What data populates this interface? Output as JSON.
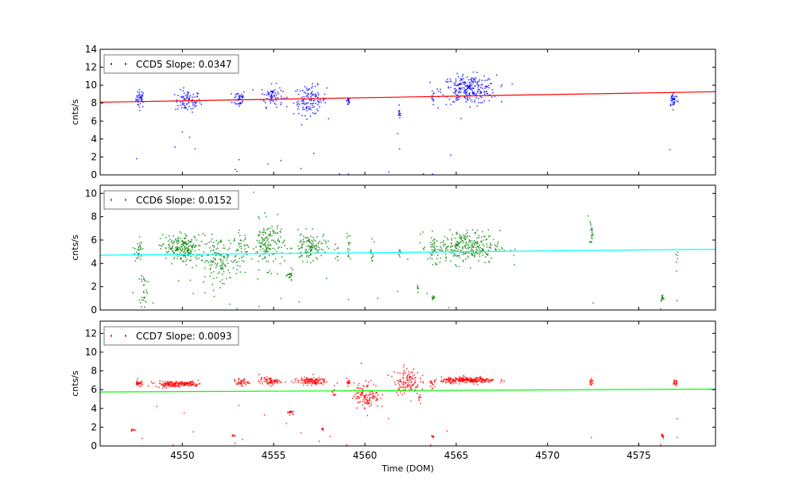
{
  "chart_data": [
    {
      "type": "scatter",
      "legend": "CCD5 Slope: 0.0347",
      "ylabel": "cnts/s",
      "xlim": [
        4545.5,
        4579.2
      ],
      "ylim": [
        0,
        14
      ],
      "yticks": [
        0,
        2,
        4,
        6,
        8,
        10,
        12,
        14
      ],
      "point_color": "#0000ff",
      "fit_color": "#ff0000",
      "fit": {
        "slope": 0.0347,
        "y_at_xmin": 8.1,
        "y_at_xmax": 9.27
      },
      "legend_position": "top-left",
      "clusters": [
        [
          4547.7,
          8.5,
          0.12,
          0.5,
          40
        ],
        [
          4550.3,
          8.2,
          0.35,
          0.6,
          80
        ],
        [
          4553.1,
          8.5,
          0.18,
          0.5,
          40
        ],
        [
          4554.9,
          8.8,
          0.3,
          0.6,
          70
        ],
        [
          4557.0,
          8.3,
          0.45,
          0.8,
          120
        ],
        [
          4559.1,
          8.3,
          0.05,
          0.4,
          15
        ],
        [
          4561.9,
          6.8,
          0.05,
          0.3,
          12
        ],
        [
          4563.7,
          8.5,
          0.05,
          0.4,
          10
        ],
        [
          4565.7,
          9.5,
          0.75,
          0.8,
          250
        ],
        [
          4576.9,
          8.4,
          0.12,
          0.4,
          40
        ]
      ],
      "outliers": [
        [
          4547.5,
          1.8
        ],
        [
          4549.6,
          3.1
        ],
        [
          4550.4,
          4.2
        ],
        [
          4550.0,
          4.8
        ],
        [
          4550.7,
          2.9
        ],
        [
          4552.9,
          0.6
        ],
        [
          4553.0,
          0.4
        ],
        [
          4553.1,
          1.7
        ],
        [
          4554.7,
          1.2
        ],
        [
          4555.4,
          1.6
        ],
        [
          4556.5,
          0.7
        ],
        [
          4557.2,
          2.4
        ],
        [
          4558.6,
          0.1
        ],
        [
          4559.1,
          0.1
        ],
        [
          4561.3,
          0.3
        ],
        [
          4561.9,
          2.9
        ],
        [
          4561.8,
          4.6
        ],
        [
          4563.2,
          0.1
        ],
        [
          4563.7,
          0.1
        ],
        [
          4564.7,
          2.2
        ],
        [
          4576.7,
          2.8
        ]
      ]
    },
    {
      "type": "scatter",
      "legend": "CCD6 Slope: 0.0152",
      "ylabel": "cnts/s",
      "xlim": [
        4545.5,
        4579.2
      ],
      "ylim": [
        0,
        10.7
      ],
      "yticks": [
        0,
        2,
        4,
        6,
        8,
        10
      ],
      "point_color": "#008000",
      "fit_color": "#00ffff",
      "fit": {
        "slope": 0.0152,
        "y_at_xmin": 4.7,
        "y_at_xmax": 5.21
      },
      "legend_position": "top-left",
      "clusters": [
        [
          4547.6,
          5.2,
          0.1,
          0.6,
          30
        ],
        [
          4547.9,
          1.8,
          0.1,
          0.8,
          30
        ],
        [
          4549.6,
          5.3,
          0.4,
          0.6,
          120
        ],
        [
          4550.4,
          5.2,
          0.3,
          0.6,
          80
        ],
        [
          4552.0,
          4.3,
          0.55,
          1.0,
          150
        ],
        [
          4553.2,
          5.3,
          0.2,
          0.7,
          40
        ],
        [
          4554.7,
          5.6,
          0.45,
          1.0,
          150
        ],
        [
          4555.9,
          2.9,
          0.08,
          0.25,
          20
        ],
        [
          4557.0,
          5.4,
          0.45,
          0.6,
          120
        ],
        [
          4558.5,
          5.0,
          0.04,
          0.5,
          8
        ],
        [
          4559.1,
          5.5,
          0.05,
          0.6,
          15
        ],
        [
          4560.4,
          5.0,
          0.05,
          0.7,
          12
        ],
        [
          4561.9,
          5.1,
          0.05,
          0.4,
          8
        ],
        [
          4562.9,
          1.8,
          0.04,
          0.2,
          6
        ],
        [
          4563.7,
          5.3,
          0.1,
          0.6,
          20
        ],
        [
          4563.7,
          0.9,
          0.05,
          0.2,
          10
        ],
        [
          4565.5,
          5.4,
          0.95,
          0.7,
          300
        ],
        [
          4572.4,
          6.8,
          0.05,
          0.6,
          20
        ],
        [
          4576.3,
          1.0,
          0.05,
          0.15,
          15
        ],
        [
          4577.1,
          4.5,
          0.05,
          0.7,
          6
        ]
      ],
      "outliers": [
        [
          4547.3,
          1.5
        ],
        [
          4548.4,
          0.6
        ],
        [
          4549.8,
          2.5
        ],
        [
          4550.6,
          1.4
        ],
        [
          4552.6,
          0.5
        ],
        [
          4553.0,
          0.1
        ],
        [
          4553.9,
          10.1
        ],
        [
          4554.2,
          0.3
        ],
        [
          4555.4,
          1.0
        ],
        [
          4556.4,
          0.7
        ],
        [
          4557.9,
          2.7
        ],
        [
          4559.1,
          0.9
        ],
        [
          4560.7,
          1.0
        ],
        [
          4561.8,
          1.6
        ],
        [
          4563.4,
          1.4
        ],
        [
          4564.6,
          0.2
        ],
        [
          4572.5,
          0.6
        ],
        [
          4577.1,
          0.8
        ],
        [
          4576.2,
          0.1
        ]
      ]
    },
    {
      "type": "scatter",
      "legend": "CCD7 Slope: 0.0093",
      "ylabel": "cnts/s",
      "xlabel": "Time (DOM)",
      "xlim": [
        4545.5,
        4579.2
      ],
      "xticks": [
        4550,
        4555,
        4560,
        4565,
        4570,
        4575
      ],
      "ylim": [
        0,
        13.3
      ],
      "yticks": [
        0,
        2,
        4,
        6,
        8,
        10,
        12
      ],
      "point_color": "#ff0000",
      "fit_color": "#00ff00",
      "fit": {
        "slope": 0.0093,
        "y_at_xmin": 5.75,
        "y_at_xmax": 6.06
      },
      "legend_position": "top-left",
      "clusters": [
        [
          4547.3,
          1.7,
          0.08,
          0.05,
          10
        ],
        [
          4547.6,
          6.7,
          0.08,
          0.2,
          30
        ],
        [
          4549.4,
          6.6,
          0.45,
          0.15,
          120
        ],
        [
          4550.4,
          6.6,
          0.3,
          0.15,
          60
        ],
        [
          4552.8,
          1.1,
          0.05,
          0.05,
          8
        ],
        [
          4553.2,
          6.8,
          0.2,
          0.2,
          40
        ],
        [
          4554.8,
          6.9,
          0.3,
          0.2,
          70
        ],
        [
          4555.9,
          3.6,
          0.08,
          0.1,
          20
        ],
        [
          4557.0,
          6.9,
          0.45,
          0.2,
          120
        ],
        [
          4557.7,
          1.8,
          0.04,
          0.1,
          8
        ],
        [
          4558.3,
          5.7,
          0.04,
          0.3,
          10
        ],
        [
          4559.1,
          6.8,
          0.05,
          0.2,
          15
        ],
        [
          4560.1,
          5.4,
          0.35,
          0.7,
          120
        ],
        [
          4562.3,
          6.9,
          0.35,
          0.7,
          120
        ],
        [
          4563.0,
          5.0,
          0.04,
          0.3,
          8
        ],
        [
          4563.7,
          6.7,
          0.08,
          0.3,
          15
        ],
        [
          4563.7,
          1.0,
          0.04,
          0.15,
          8
        ],
        [
          4565.7,
          7.0,
          0.75,
          0.15,
          250
        ],
        [
          4572.4,
          6.8,
          0.05,
          0.2,
          15
        ],
        [
          4576.3,
          1.0,
          0.05,
          0.1,
          15
        ],
        [
          4577.0,
          6.7,
          0.08,
          0.2,
          20
        ]
      ],
      "outliers": [
        [
          4547.8,
          0.8
        ],
        [
          4548.6,
          4.2
        ],
        [
          4549.5,
          0.1
        ],
        [
          4550.6,
          1.5
        ],
        [
          4550.1,
          3.5
        ],
        [
          4552.9,
          0.3
        ],
        [
          4553.1,
          4.3
        ],
        [
          4553.3,
          0.7
        ],
        [
          4554.5,
          3.3
        ],
        [
          4555.7,
          2.4
        ],
        [
          4556.5,
          1.4
        ],
        [
          4557.5,
          0.5
        ],
        [
          4558.1,
          1.0
        ],
        [
          4559.0,
          0.1
        ],
        [
          4559.8,
          8.8
        ],
        [
          4561.3,
          2.9
        ],
        [
          4563.6,
          0.1
        ],
        [
          4564.5,
          1.6
        ],
        [
          4572.4,
          0.9
        ],
        [
          4577.1,
          2.9
        ],
        [
          4577.1,
          0.9
        ],
        [
          4576.2,
          0.1
        ]
      ]
    }
  ]
}
